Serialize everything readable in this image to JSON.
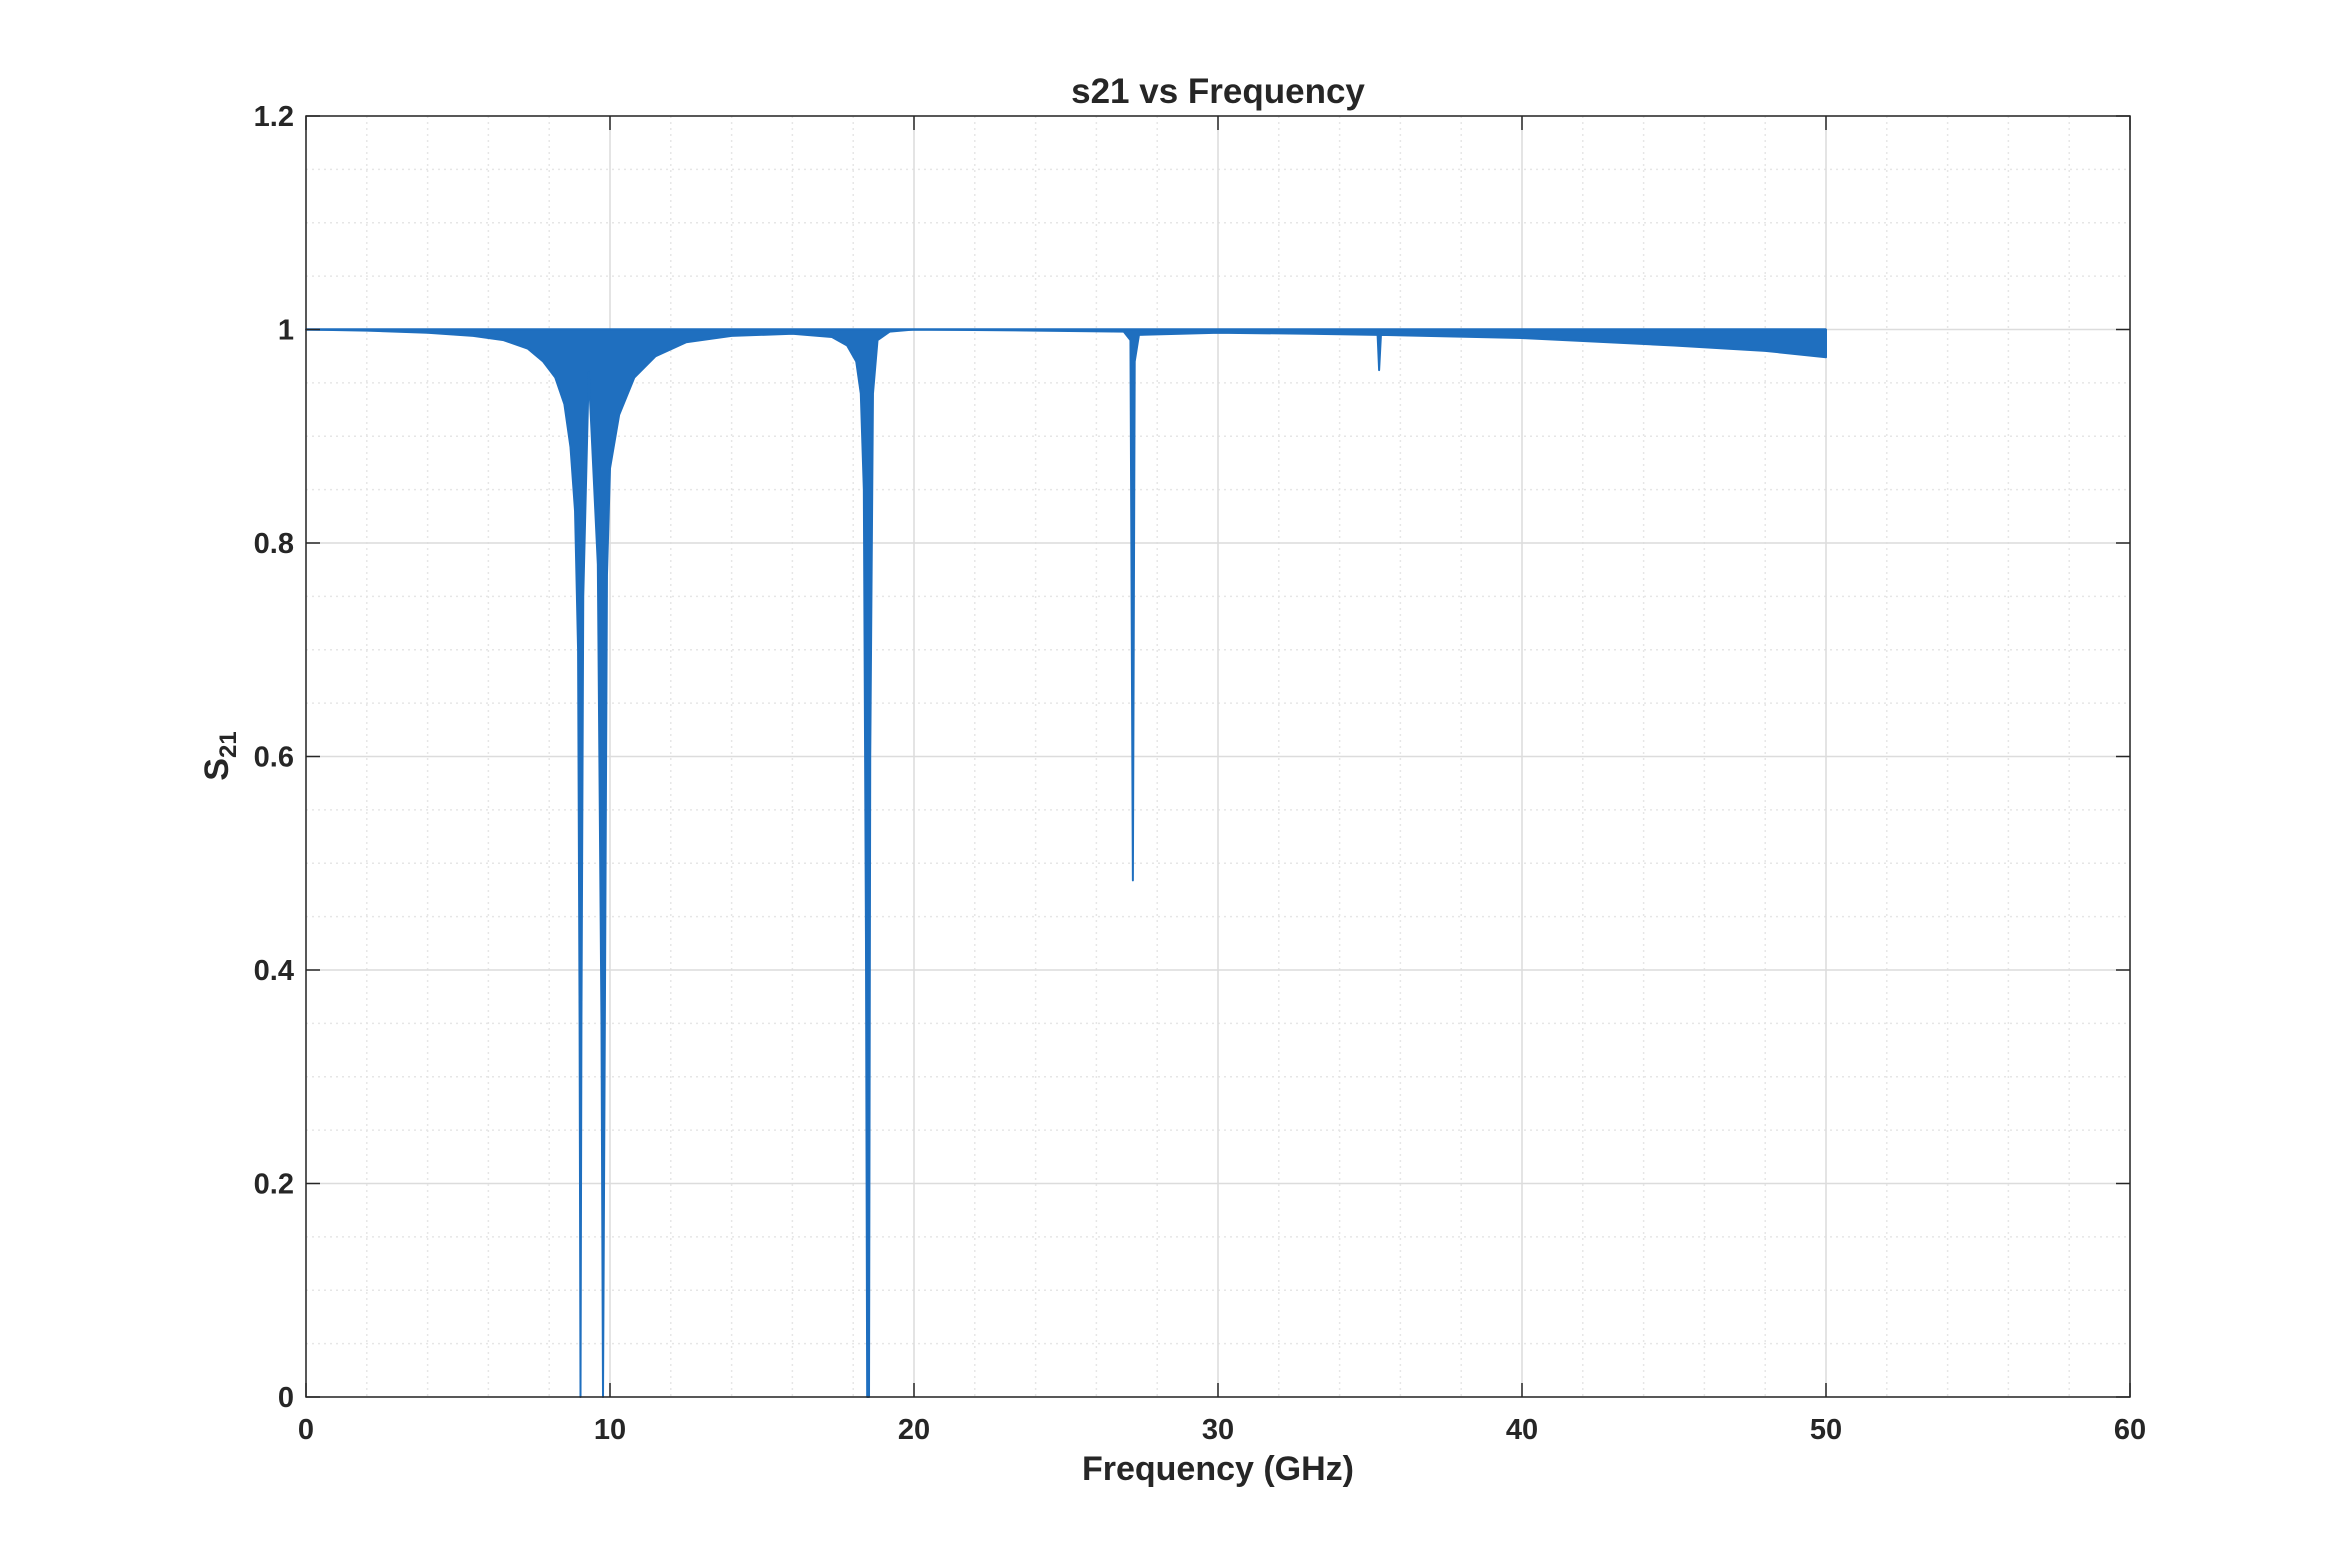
{
  "chart_data": {
    "type": "area",
    "title": "s21 vs Frequency",
    "xlabel": "Frequency (GHz)",
    "ylabel_main": "S",
    "ylabel_sub": "21",
    "xlim": [
      0,
      60
    ],
    "ylim": [
      0,
      1.2
    ],
    "xticks": [
      0,
      10,
      20,
      30,
      40,
      50,
      60
    ],
    "xtick_labels": [
      "0",
      "10",
      "20",
      "30",
      "40",
      "50",
      "60"
    ],
    "yticks": [
      0,
      0.2,
      0.4,
      0.6,
      0.8,
      1,
      1.2
    ],
    "ytick_labels": [
      "0",
      "0.2",
      "0.4",
      "0.6",
      "0.8",
      "1",
      "1.2"
    ],
    "grid": true,
    "minor_grid": true,
    "series": [
      {
        "color": "#1f6fbf",
        "band_upper": [
          [
            0,
            1.0
          ],
          [
            9.0,
            1.0
          ],
          [
            9.8,
            1.0
          ],
          [
            18.4,
            1.0
          ],
          [
            27.2,
            1.0
          ],
          [
            35.3,
            1.0
          ],
          [
            50,
            1.0
          ]
        ],
        "band_lower": [
          [
            0,
            1.0
          ],
          [
            2,
            0.999
          ],
          [
            4,
            0.997
          ],
          [
            5.5,
            0.994
          ],
          [
            6.5,
            0.99
          ],
          [
            7.3,
            0.982
          ],
          [
            7.8,
            0.97
          ],
          [
            8.2,
            0.955
          ],
          [
            8.5,
            0.93
          ],
          [
            8.7,
            0.89
          ],
          [
            8.85,
            0.83
          ],
          [
            8.95,
            0.7
          ],
          [
            9.0,
            0.35
          ],
          [
            9.03,
            0.0
          ],
          [
            9.06,
            0.35
          ],
          [
            9.12,
            0.75
          ],
          [
            9.3,
            0.96
          ],
          [
            9.6,
            0.78
          ],
          [
            9.72,
            0.35
          ],
          [
            9.77,
            0.0
          ],
          [
            9.83,
            0.35
          ],
          [
            9.9,
            0.77
          ],
          [
            10.0,
            0.87
          ],
          [
            10.3,
            0.92
          ],
          [
            10.8,
            0.955
          ],
          [
            11.5,
            0.975
          ],
          [
            12.5,
            0.988
          ],
          [
            14,
            0.994
          ],
          [
            16,
            0.996
          ],
          [
            17.3,
            0.993
          ],
          [
            17.8,
            0.985
          ],
          [
            18.1,
            0.97
          ],
          [
            18.25,
            0.94
          ],
          [
            18.35,
            0.85
          ],
          [
            18.42,
            0.43
          ],
          [
            18.46,
            0.0
          ],
          [
            18.52,
            0.0
          ],
          [
            18.56,
            0.6
          ],
          [
            18.65,
            0.94
          ],
          [
            18.8,
            0.99
          ],
          [
            19.2,
            0.998
          ],
          [
            20,
            1.0
          ],
          [
            24,
            0.999
          ],
          [
            26.9,
            0.998
          ],
          [
            27.12,
            0.99
          ],
          [
            27.2,
            0.484
          ],
          [
            27.26,
            0.97
          ],
          [
            27.4,
            0.995
          ],
          [
            30,
            0.997
          ],
          [
            33,
            0.996
          ],
          [
            35.25,
            0.995
          ],
          [
            35.3,
            0.962
          ],
          [
            35.36,
            0.995
          ],
          [
            40,
            0.992
          ],
          [
            45,
            0.985
          ],
          [
            48,
            0.98
          ],
          [
            50,
            0.974
          ]
        ]
      }
    ]
  }
}
